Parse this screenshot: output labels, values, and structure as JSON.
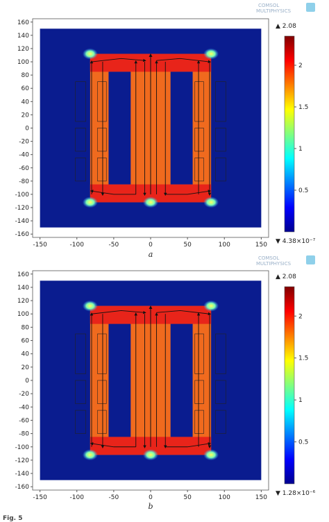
{
  "caption": "Fig. 5",
  "chart_data": [
    {
      "type": "heatmap",
      "subtitle": "a",
      "brand": [
        "COMSOL",
        "MULTIPHYSICS"
      ],
      "x_ticks": [
        -150,
        -100,
        -50,
        0,
        50,
        100,
        150
      ],
      "y_ticks": [
        160,
        140,
        120,
        100,
        80,
        60,
        40,
        20,
        0,
        -20,
        -40,
        -60,
        -80,
        -100,
        -120,
        -140,
        -160
      ],
      "xlim": [
        -160,
        160
      ],
      "ylim": [
        -165,
        165
      ],
      "colorbar": {
        "max_label": "▲ 2.08",
        "min_label": "▼ 4.38×10⁻⁷",
        "ticks": [
          2,
          1.5,
          1,
          0.5
        ],
        "range": [
          0,
          2.35
        ]
      }
    },
    {
      "type": "heatmap",
      "subtitle": "b",
      "brand": [
        "COMSOL",
        "MULTIPHYSICS"
      ],
      "x_ticks": [
        -150,
        -100,
        -50,
        0,
        50,
        100,
        150
      ],
      "y_ticks": [
        160,
        140,
        120,
        100,
        80,
        60,
        40,
        20,
        0,
        -20,
        -40,
        -60,
        -80,
        -100,
        -120,
        -140,
        -160
      ],
      "xlim": [
        -160,
        160
      ],
      "ylim": [
        -165,
        165
      ],
      "colorbar": {
        "max_label": "▲ 2.08",
        "min_label": "▼ 1.28×10⁻⁶",
        "ticks": [
          2,
          1.5,
          1,
          0.5
        ],
        "range": [
          0,
          2.35
        ]
      }
    }
  ]
}
